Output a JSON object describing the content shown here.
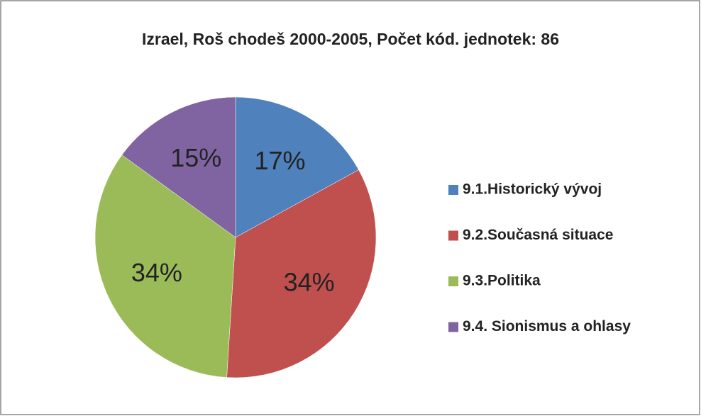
{
  "chart_data": {
    "type": "pie",
    "title": "Izrael, Roš chodeš 2000-2005, Počet kód. jednotek: 86",
    "categories": [
      "9.1.Historický vývoj",
      "9.2.Současná situace",
      "9.3.Politika",
      "9.4. Sionismus a ohlasy"
    ],
    "values": [
      17,
      34,
      34,
      15
    ],
    "value_labels": [
      "17%",
      "34%",
      "34%",
      "15%"
    ],
    "colors": [
      "#4f81bd",
      "#c0504d",
      "#9bbb59",
      "#8064a2"
    ],
    "legend": "right"
  }
}
